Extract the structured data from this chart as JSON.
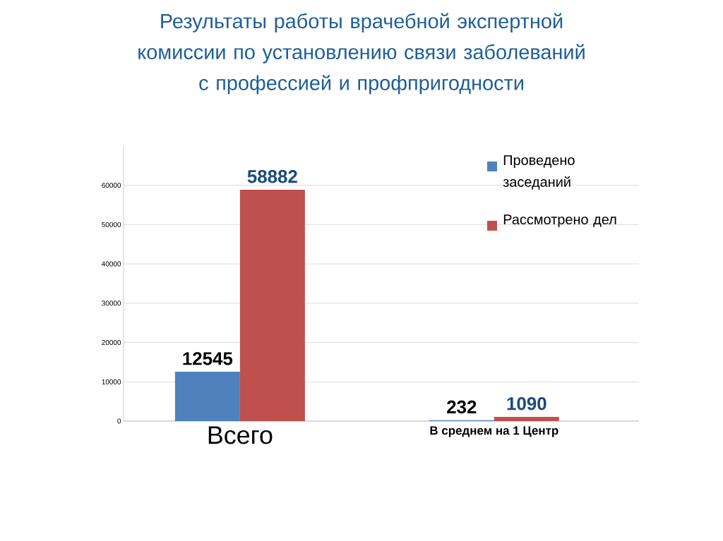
{
  "chart_data": {
    "type": "bar",
    "title": "Результаты работы врачебной экспертной комиссии по установлению связи заболеваний с профессией и профпригодности",
    "categories": [
      "Всего",
      "В среднем на 1 Центр"
    ],
    "series": [
      {
        "name": "Проведено заседаний",
        "color": "#4f81bd",
        "values": [
          12545,
          232
        ]
      },
      {
        "name": "Рассмотрено дел",
        "color": "#c0504d",
        "values": [
          58882,
          1090
        ]
      }
    ],
    "ylim": [
      0,
      70000
    ],
    "yticks": [
      0,
      10000,
      20000,
      30000,
      40000,
      50000,
      60000
    ],
    "grid": "y",
    "legend": "top right",
    "data_labels": true
  }
}
